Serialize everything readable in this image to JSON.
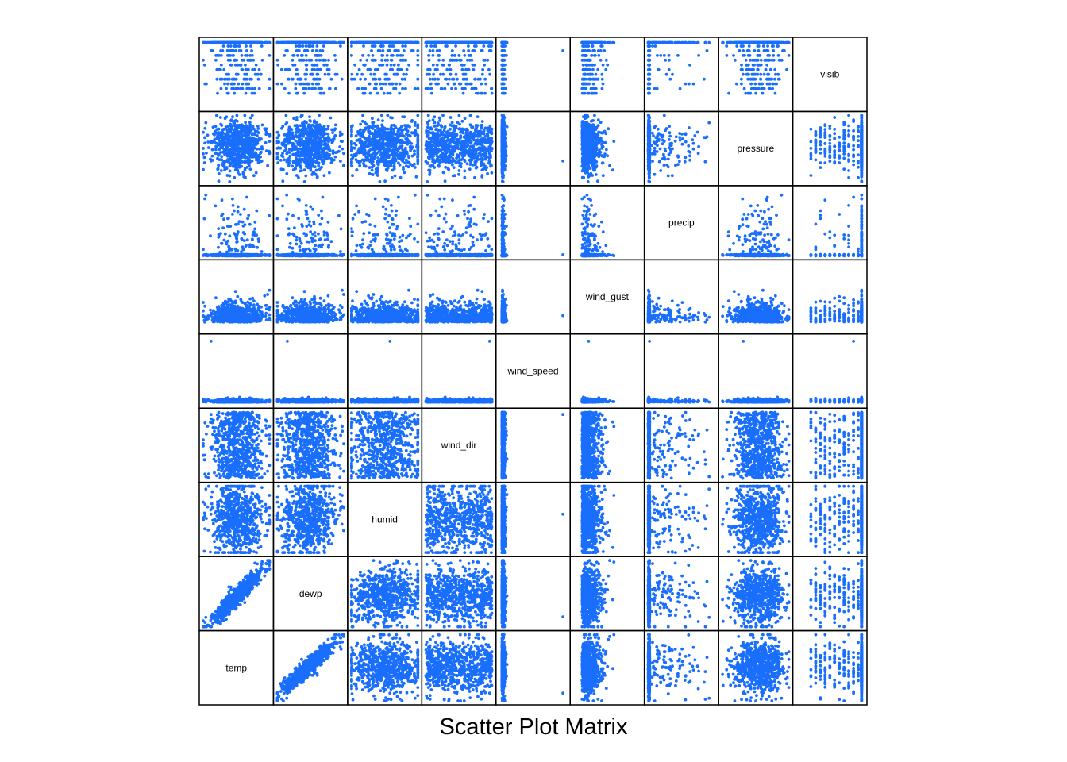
{
  "chart_data": {
    "type": "scatter",
    "title": "Scatter Plot Matrix",
    "variables": [
      "temp",
      "dewp",
      "humid",
      "wind_dir",
      "wind_speed",
      "wind_gust",
      "precip",
      "pressure",
      "visib"
    ],
    "diagonal_labels": "variable names shown in diagonal panels, from temp (bottom-left) to visib (top-right)",
    "point_color": "#1a6efc",
    "frame_color": "#000000",
    "axes_ticks": false,
    "grid": false
  }
}
